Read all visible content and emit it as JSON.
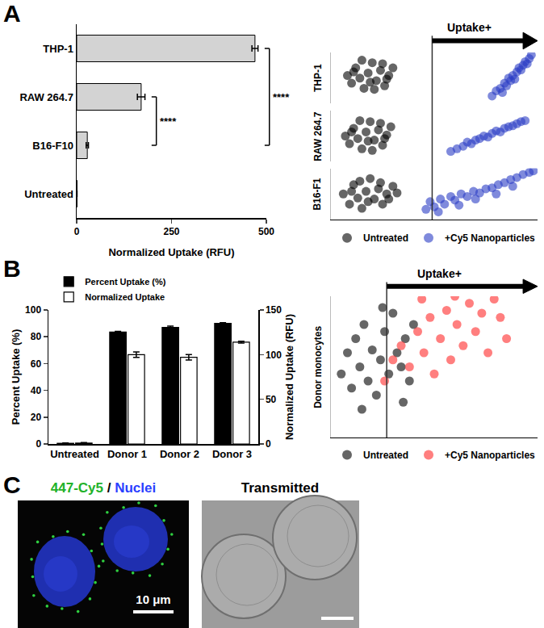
{
  "panel_labels": [
    "A",
    "B",
    "C"
  ],
  "chart_data": [
    {
      "type": "bar",
      "orientation": "horizontal",
      "categories": [
        "THP-1",
        "RAW 264.7",
        "B16-F10",
        "Untreated"
      ],
      "values": [
        470,
        170,
        28,
        1
      ],
      "errors": [
        8,
        10,
        3,
        0
      ],
      "color": "#d3d3d3",
      "xlabel": "Normalized Uptake (RFU)",
      "xlim": [
        0,
        500
      ],
      "xticks": [
        0,
        250,
        500
      ],
      "grid": false,
      "annotations": [
        {
          "text": "****",
          "between": [
            "RAW 264.7",
            "B16-F10"
          ]
        },
        {
          "text": "****",
          "between": [
            "THP-1",
            "B16-F10"
          ]
        }
      ]
    },
    {
      "type": "scatter",
      "xlim": [
        0,
        100
      ],
      "ylim": [
        0,
        100
      ],
      "tick_labels": false,
      "grid": false,
      "legend": "bottom",
      "gate": 49,
      "gate_label": "Uptake+",
      "rows": [
        {
          "label": "THP-1",
          "series": [
            {
              "name": "Untreated",
              "color": "#000000",
              "x": [
                8,
                10,
                12,
                14,
                16,
                18,
                20,
                22,
                24,
                26,
                28,
                30,
                15,
                19,
                25,
                11,
                21,
                27
              ],
              "y": [
                55,
                40,
                70,
                50,
                30,
                60,
                80,
                45,
                65,
                35,
                55,
                70,
                85,
                42,
                78,
                62,
                28,
                48
              ]
            },
            {
              "name": "+Cy5 Nanoparticles",
              "color": "#2a3cc4",
              "x": [
                78,
                80,
                82,
                84,
                85,
                86,
                88,
                89,
                90,
                91,
                92,
                93,
                94,
                95,
                96,
                97,
                83,
                87
              ],
              "y": [
                15,
                25,
                30,
                40,
                35,
                50,
                55,
                48,
                62,
                70,
                66,
                75,
                82,
                78,
                88,
                95,
                22,
                45
              ]
            }
          ]
        },
        {
          "label": "RAW 264.7",
          "series": [
            {
              "name": "Untreated",
              "color": "#000000",
              "x": [
                7,
                9,
                11,
                13,
                15,
                17,
                19,
                21,
                23,
                25,
                27,
                29,
                14,
                18,
                24,
                10,
                20,
                26
              ],
              "y": [
                50,
                35,
                65,
                45,
                25,
                58,
                78,
                42,
                62,
                32,
                52,
                68,
                80,
                40,
                75,
                58,
                22,
                45
              ]
            },
            {
              "name": "+Cy5 Nanoparticles",
              "color": "#2a3cc4",
              "x": [
                58,
                61,
                64,
                66,
                68,
                70,
                72,
                74,
                76,
                78,
                80,
                82,
                84,
                86,
                88,
                90,
                92,
                94
              ],
              "y": [
                20,
                25,
                30,
                38,
                35,
                42,
                45,
                50,
                48,
                55,
                60,
                58,
                65,
                68,
                70,
                74,
                78,
                80
              ]
            }
          ]
        },
        {
          "label": "B16-F1",
          "series": [
            {
              "name": "Untreated",
              "color": "#000000",
              "x": [
                6,
                9,
                11,
                13,
                15,
                17,
                19,
                21,
                23,
                25,
                27,
                30,
                14,
                18,
                24,
                10,
                28,
                32
              ],
              "y": [
                50,
                30,
                68,
                42,
                22,
                55,
                80,
                40,
                60,
                30,
                50,
                65,
                75,
                35,
                72,
                55,
                40,
                52
              ]
            },
            {
              "name": "+Cy5 Nanoparticles",
              "color": "#2a3cc4",
              "x": [
                46,
                48,
                50,
                53,
                55,
                58,
                60,
                63,
                66,
                69,
                72,
                75,
                78,
                81,
                84,
                87,
                90,
                93,
                96,
                98,
                52,
                62,
                70,
                80,
                88
              ],
              "y": [
                20,
                35,
                25,
                40,
                30,
                45,
                38,
                50,
                45,
                55,
                52,
                60,
                62,
                68,
                72,
                78,
                82,
                88,
                92,
                95,
                15,
                28,
                40,
                50,
                65
              ]
            }
          ]
        }
      ]
    },
    {
      "type": "bar",
      "categories": [
        "Untreated",
        "Donor 1",
        "Donor 2",
        "Donor 3"
      ],
      "ylabel": "Percent Uptake (%)",
      "y2label": "Normalized Uptake (RFU)",
      "ylim": [
        0,
        100
      ],
      "yticks": [
        0,
        20,
        40,
        60,
        80,
        100
      ],
      "y2lim": [
        0,
        150
      ],
      "y2ticks": [
        0,
        50,
        100,
        150
      ],
      "legend": "top left",
      "grid": false,
      "series": [
        {
          "name": "Percent Uptake (%)",
          "color": "#000000",
          "values": [
            0.5,
            83.5,
            87,
            90
          ],
          "errors": [
            0.2,
            0.5,
            1,
            0.5
          ]
        },
        {
          "name": "Normalized Uptake",
          "color": "#ffffff",
          "axis": "y2",
          "values": [
            1,
            100,
            97,
            114
          ],
          "errors": [
            0.5,
            3,
            3,
            1
          ]
        }
      ]
    },
    {
      "type": "scatter",
      "xlim": [
        0,
        100
      ],
      "ylim": [
        0,
        100
      ],
      "tick_labels": false,
      "grid": false,
      "legend": "bottom",
      "gate": 27,
      "gate_label": "Uptake+",
      "rows": [
        {
          "label": "Donor monocytes",
          "series": [
            {
              "name": "Untreated",
              "color": "#000000",
              "x": [
                5,
                8,
                10,
                12,
                14,
                16,
                18,
                20,
                22,
                24,
                26,
                28,
                30,
                32,
                34,
                36,
                38,
                40,
                15,
                25,
                35
              ],
              "y": [
                45,
                60,
                35,
                70,
                50,
                80,
                40,
                62,
                30,
                55,
                75,
                45,
                88,
                60,
                50,
                70,
                40,
                80,
                20,
                92,
                25
              ]
            },
            {
              "name": "+Cy5 Nanoparticles",
              "color": "#ff2a2a",
              "x": [
                26,
                30,
                34,
                38,
                42,
                45,
                48,
                50,
                53,
                56,
                58,
                61,
                64,
                67,
                70,
                73,
                76,
                79,
                82,
                85,
                44,
                60
              ],
              "y": [
                40,
                55,
                65,
                50,
                75,
                60,
                85,
                45,
                70,
                90,
                55,
                80,
                65,
                95,
                75,
                88,
                60,
                98,
                85,
                70,
                98,
                100
              ]
            }
          ]
        }
      ]
    }
  ],
  "images": {
    "panels": [
      {
        "title": [
          {
            "text": "447-Cy5",
            "color": "#22b22a"
          },
          {
            "text": " / ",
            "color": "#000000"
          },
          {
            "text": "Nuclei",
            "color": "#2a40ff"
          }
        ]
      },
      {
        "title": [
          {
            "text": "Transmitted",
            "color": "#000000"
          }
        ]
      }
    ],
    "scale_bar": "10 μm"
  }
}
